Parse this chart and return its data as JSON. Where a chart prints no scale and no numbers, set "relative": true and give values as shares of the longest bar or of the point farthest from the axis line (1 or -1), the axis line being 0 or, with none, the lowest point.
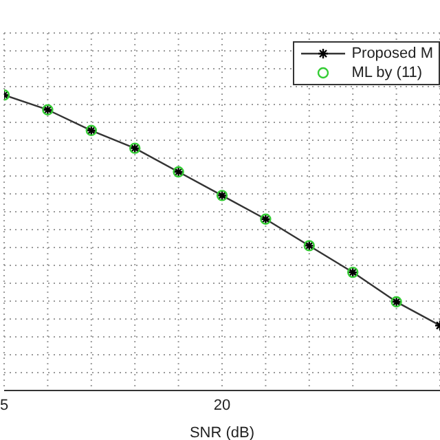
{
  "chart_data": {
    "type": "line",
    "xlabel": "SNR  (dB)",
    "relative": true,
    "grid": true,
    "legend": "top right",
    "categories": [
      "5",
      null,
      null,
      null,
      null,
      "20",
      null,
      null,
      null,
      null,
      null
    ],
    "series": [
      {
        "name": "Proposed M",
        "color": "#333333",
        "marker": "cross",
        "values": [
          1,
          0.95,
          0.88,
          0.82,
          0.74,
          0.66,
          0.58,
          0.49,
          0.4,
          0.3,
          0.22
        ]
      },
      {
        "name": "ML by (11)",
        "type": "scatter",
        "color": "#33cc33",
        "marker": "circle",
        "values": [
          1,
          0.95,
          0.88,
          0.82,
          0.74,
          0.66,
          0.58,
          0.49,
          0.4,
          0.3,
          null
        ]
      }
    ]
  }
}
